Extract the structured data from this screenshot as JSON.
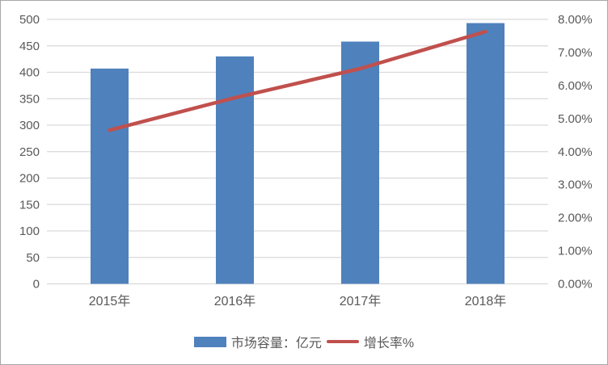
{
  "colors": {
    "bar": "#4f81bc",
    "line": "#c0504d",
    "gridline": "#d9d9d9",
    "axis_text": "#595959",
    "frame_border": "#a6a6a6",
    "background": "#ffffff"
  },
  "chart_data": {
    "type": "bar",
    "subtype": "bar-line-combo-dual-axis",
    "categories": [
      "2015年",
      "2016年",
      "2017年",
      "2018年"
    ],
    "series": [
      {
        "name": "市场容量：亿元",
        "type": "bar",
        "axis": "left",
        "values": [
          407,
          430,
          458,
          493
        ],
        "color": "#4f81bc"
      },
      {
        "name": "增长率%",
        "type": "line",
        "axis": "right",
        "values": [
          4.65,
          5.63,
          6.51,
          7.63
        ],
        "color": "#c0504d"
      }
    ],
    "title": "",
    "xlabel": "",
    "ylabel": "",
    "left_axis": {
      "min": 0,
      "max": 500,
      "step": 50,
      "tick_labels": [
        "0",
        "50",
        "100",
        "150",
        "200",
        "250",
        "300",
        "350",
        "400",
        "450",
        "500"
      ]
    },
    "right_axis": {
      "min": 0,
      "max": 8,
      "step": 1,
      "tick_labels": [
        "0.00%",
        "1.00%",
        "2.00%",
        "3.00%",
        "4.00%",
        "5.00%",
        "6.00%",
        "7.00%",
        "8.00%"
      ]
    },
    "grid": true,
    "legend_position": "bottom"
  }
}
